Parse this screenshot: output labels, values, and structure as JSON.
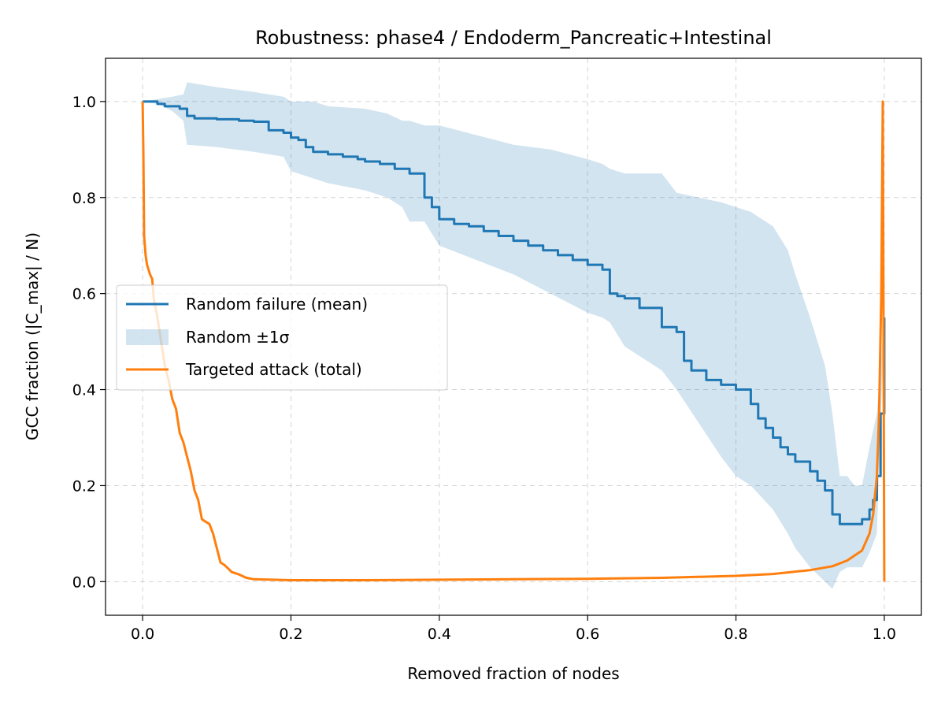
{
  "chart_data": {
    "type": "line",
    "title": "Robustness: phase4 / Endoderm_Pancreatic+Intestinal",
    "xlabel": "Removed fraction of nodes",
    "ylabel": "GCC fraction (|C_max| / N)",
    "xlim": [
      -0.05,
      1.05
    ],
    "ylim": [
      -0.07,
      1.09
    ],
    "x_ticks": [
      0.0,
      0.2,
      0.4,
      0.6,
      0.8,
      1.0
    ],
    "x_tick_labels": [
      "0.0",
      "0.2",
      "0.4",
      "0.6",
      "0.8",
      "1.0"
    ],
    "y_ticks": [
      0.0,
      0.2,
      0.4,
      0.6,
      0.8,
      1.0
    ],
    "y_tick_labels": [
      "0.0",
      "0.2",
      "0.4",
      "0.6",
      "0.8",
      "1.0"
    ],
    "grid": true,
    "legend_position": "center-left",
    "colors": {
      "random": "#1f77b4",
      "band": "#1f77b4",
      "targeted": "#ff7f0e"
    },
    "series": [
      {
        "name": "Random failure (mean)",
        "kind": "line",
        "x": [
          0.0,
          0.01,
          0.02,
          0.03,
          0.05,
          0.06,
          0.07,
          0.1,
          0.13,
          0.15,
          0.17,
          0.19,
          0.2,
          0.21,
          0.22,
          0.23,
          0.25,
          0.27,
          0.29,
          0.3,
          0.32,
          0.34,
          0.36,
          0.38,
          0.39,
          0.4,
          0.42,
          0.44,
          0.46,
          0.48,
          0.5,
          0.52,
          0.54,
          0.56,
          0.58,
          0.6,
          0.62,
          0.63,
          0.64,
          0.65,
          0.67,
          0.7,
          0.72,
          0.73,
          0.74,
          0.76,
          0.78,
          0.8,
          0.82,
          0.83,
          0.84,
          0.85,
          0.86,
          0.87,
          0.88,
          0.9,
          0.91,
          0.92,
          0.93,
          0.94,
          0.95,
          0.96,
          0.97,
          0.98,
          0.985,
          0.99,
          0.995,
          1.0
        ],
        "y": [
          1.0,
          1.0,
          0.995,
          0.99,
          0.985,
          0.97,
          0.965,
          0.963,
          0.96,
          0.958,
          0.94,
          0.935,
          0.925,
          0.92,
          0.905,
          0.895,
          0.89,
          0.885,
          0.88,
          0.875,
          0.87,
          0.86,
          0.85,
          0.8,
          0.78,
          0.755,
          0.745,
          0.74,
          0.73,
          0.72,
          0.71,
          0.7,
          0.69,
          0.68,
          0.67,
          0.66,
          0.65,
          0.6,
          0.595,
          0.59,
          0.57,
          0.53,
          0.52,
          0.46,
          0.44,
          0.42,
          0.41,
          0.4,
          0.37,
          0.34,
          0.32,
          0.3,
          0.28,
          0.265,
          0.25,
          0.23,
          0.21,
          0.19,
          0.14,
          0.12,
          0.12,
          0.12,
          0.13,
          0.15,
          0.17,
          0.22,
          0.35,
          0.55
        ]
      },
      {
        "name": "Random ±1σ",
        "kind": "band",
        "x": [
          0.0,
          0.02,
          0.04,
          0.055,
          0.06,
          0.1,
          0.15,
          0.19,
          0.2,
          0.23,
          0.25,
          0.3,
          0.33,
          0.35,
          0.36,
          0.38,
          0.4,
          0.45,
          0.5,
          0.55,
          0.6,
          0.62,
          0.63,
          0.65,
          0.7,
          0.72,
          0.75,
          0.78,
          0.8,
          0.82,
          0.85,
          0.87,
          0.88,
          0.9,
          0.92,
          0.93,
          0.94,
          0.95,
          0.96,
          0.97,
          0.98,
          0.99,
          1.0
        ],
        "upper": [
          1.0,
          1.005,
          1.01,
          1.015,
          1.04,
          1.03,
          1.02,
          1.01,
          1.0,
          1.0,
          0.99,
          0.985,
          0.975,
          0.96,
          0.96,
          0.95,
          0.95,
          0.93,
          0.91,
          0.9,
          0.88,
          0.87,
          0.86,
          0.85,
          0.85,
          0.81,
          0.8,
          0.79,
          0.78,
          0.77,
          0.74,
          0.69,
          0.64,
          0.55,
          0.45,
          0.35,
          0.22,
          0.22,
          0.2,
          0.2,
          0.28,
          0.35,
          0.55
        ],
        "lower": [
          1.0,
          0.995,
          0.98,
          0.96,
          0.91,
          0.905,
          0.895,
          0.885,
          0.855,
          0.84,
          0.83,
          0.815,
          0.8,
          0.78,
          0.75,
          0.75,
          0.7,
          0.67,
          0.64,
          0.6,
          0.56,
          0.55,
          0.54,
          0.49,
          0.44,
          0.4,
          0.33,
          0.26,
          0.22,
          0.2,
          0.15,
          0.1,
          0.07,
          0.03,
          0.0,
          -0.015,
          0.02,
          0.03,
          0.03,
          0.03,
          0.06,
          0.1,
          0.55
        ]
      },
      {
        "name": "Targeted attack (total)",
        "kind": "line",
        "x": [
          0.0,
          0.001,
          0.002,
          0.004,
          0.006,
          0.01,
          0.013,
          0.015,
          0.02,
          0.025,
          0.03,
          0.035,
          0.04,
          0.045,
          0.05,
          0.055,
          0.06,
          0.065,
          0.07,
          0.075,
          0.08,
          0.085,
          0.09,
          0.095,
          0.1,
          0.105,
          0.11,
          0.115,
          0.12,
          0.13,
          0.14,
          0.15,
          0.2,
          0.3,
          0.4,
          0.5,
          0.6,
          0.7,
          0.8,
          0.85,
          0.9,
          0.93,
          0.95,
          0.97,
          0.98,
          0.985,
          0.99,
          0.993,
          0.996,
          0.998,
          0.999,
          1.0
        ],
        "y": [
          1.0,
          0.9,
          0.72,
          0.68,
          0.66,
          0.64,
          0.63,
          0.59,
          0.55,
          0.5,
          0.45,
          0.42,
          0.38,
          0.36,
          0.31,
          0.29,
          0.26,
          0.23,
          0.19,
          0.17,
          0.13,
          0.125,
          0.12,
          0.1,
          0.07,
          0.04,
          0.035,
          0.028,
          0.02,
          0.015,
          0.008,
          0.005,
          0.003,
          0.003,
          0.004,
          0.005,
          0.006,
          0.008,
          0.012,
          0.016,
          0.024,
          0.032,
          0.044,
          0.065,
          0.1,
          0.14,
          0.22,
          0.35,
          0.6,
          1.0,
          0.5,
          0.0
        ]
      }
    ]
  }
}
